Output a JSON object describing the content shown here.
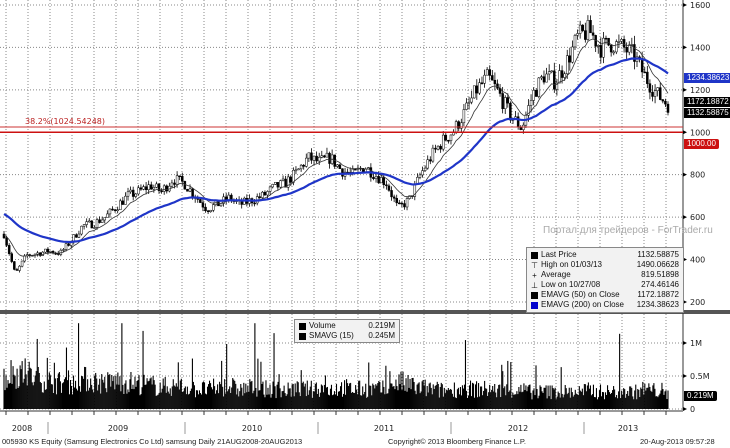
{
  "chart_data": {
    "type": "candlestick",
    "security": "005930 KS Equity (Samsung Electronics Co Ltd) samsung",
    "period": "Daily 21AUG2008-20AUG2013",
    "copyright": "Copyright© 2013 Bloomberg Finance L.P.",
    "timestamp": "20-Aug-2013 09:57:28",
    "watermark": "Портал для трейдеров - ForTrader.ru",
    "x_tick_labels": [
      "2008",
      "2009",
      "2010",
      "2011",
      "2012",
      "2013"
    ],
    "price_axis": {
      "ylim": [
        160,
        1620
      ],
      "ticks": [
        200,
        400,
        600,
        800,
        1000,
        1200,
        1400,
        1600
      ],
      "grid": true
    },
    "volume_axis": {
      "ylim": [
        0,
        1.35
      ],
      "ticks": [
        {
          "v": 0,
          "label": "0"
        },
        {
          "v": 0.5,
          "label": "0.5M"
        },
        {
          "v": 1,
          "label": "1M"
        }
      ],
      "grid": true
    },
    "monthly_close": {
      "months": [
        "2008-09",
        "2008-10",
        "2008-11",
        "2008-12",
        "2009-01",
        "2009-02",
        "2009-03",
        "2009-04",
        "2009-05",
        "2009-06",
        "2009-07",
        "2009-08",
        "2009-09",
        "2009-10",
        "2009-11",
        "2009-12",
        "2010-01",
        "2010-02",
        "2010-03",
        "2010-04",
        "2010-05",
        "2010-06",
        "2010-07",
        "2010-08",
        "2010-09",
        "2010-10",
        "2010-11",
        "2010-12",
        "2011-01",
        "2011-02",
        "2011-03",
        "2011-04",
        "2011-05",
        "2011-06",
        "2011-07",
        "2011-08",
        "2011-09",
        "2011-10",
        "2011-11",
        "2011-12",
        "2012-01",
        "2012-02",
        "2012-03",
        "2012-04",
        "2012-05",
        "2012-06",
        "2012-07",
        "2012-08",
        "2012-09",
        "2012-10",
        "2012-11",
        "2012-12",
        "2013-01",
        "2013-02",
        "2013-03",
        "2013-04",
        "2013-05",
        "2013-06",
        "2013-07",
        "2013-08"
      ],
      "values": [
        520,
        330,
        420,
        430,
        440,
        430,
        490,
        560,
        570,
        600,
        650,
        700,
        720,
        750,
        720,
        780,
        760,
        700,
        640,
        660,
        690,
        660,
        680,
        700,
        740,
        760,
        810,
        880,
        860,
        880,
        820,
        800,
        840,
        800,
        760,
        640,
        680,
        800,
        890,
        960,
        1010,
        1100,
        1200,
        1260,
        1180,
        1080,
        1020,
        1180,
        1270,
        1240,
        1330,
        1450,
        1480,
        1400,
        1420,
        1400,
        1360,
        1260,
        1180,
        1132
      ]
    },
    "monthly_avg_volume_m": [
      0.48,
      0.55,
      0.52,
      0.45,
      0.42,
      0.4,
      0.38,
      0.45,
      0.42,
      0.4,
      0.42,
      0.4,
      0.38,
      0.36,
      0.34,
      0.34,
      0.34,
      0.3,
      0.3,
      0.32,
      0.34,
      0.3,
      0.32,
      0.3,
      0.3,
      0.28,
      0.3,
      0.3,
      0.32,
      0.3,
      0.32,
      0.3,
      0.3,
      0.3,
      0.3,
      0.4,
      0.36,
      0.32,
      0.3,
      0.28,
      0.3,
      0.3,
      0.3,
      0.3,
      0.28,
      0.28,
      0.28,
      0.26,
      0.26,
      0.26,
      0.26,
      0.26,
      0.28,
      0.26,
      0.26,
      0.26,
      0.26,
      0.3,
      0.28,
      0.22
    ],
    "fib_level": {
      "label": "38.2%(1024.54248)",
      "value": 1024.54248
    },
    "horizontal_line": {
      "value": 1000,
      "label": "1000.00",
      "color": "#cc1111"
    },
    "price_legend": [
      {
        "icon": "square",
        "color": "#000000",
        "name": "Last Price",
        "value": "1132.58875"
      },
      {
        "icon": "high-marker",
        "color": "#000000",
        "name": "High on 01/03/13",
        "value": "1490.06628"
      },
      {
        "icon": "average-marker",
        "color": "#000000",
        "name": "Average",
        "value": "819.51898"
      },
      {
        "icon": "low-marker",
        "color": "#000000",
        "name": "Low on 10/27/08",
        "value": "274.46146"
      },
      {
        "icon": "square",
        "color": "#000000",
        "name": "EMAVG (50) on Close",
        "value": "1172.18872"
      },
      {
        "icon": "square",
        "color": "#0000cc",
        "name": "EMAVG (200) on Close",
        "value": "1234.38623"
      }
    ],
    "volume_legend": [
      {
        "icon": "square",
        "color": "#000000",
        "name": "Volume",
        "value": "0.219M"
      },
      {
        "icon": "square",
        "color": "#000000",
        "name": "SMAVG (15)",
        "value": "0.245M"
      }
    ],
    "value_tags": [
      {
        "label": "1234.38623",
        "value": 1234.38623,
        "color": "#1f35c8"
      },
      {
        "label": "1172.18872",
        "value": 1172.18872,
        "color": "#000000"
      },
      {
        "label": "1132.58875",
        "value": 1132.58875,
        "color": "#000000"
      },
      {
        "label": "1000.00",
        "value": 1000,
        "color": "#cc1111"
      }
    ],
    "volume_tag": {
      "label": "0.219M",
      "value": 0.219,
      "color": "#000000"
    }
  }
}
